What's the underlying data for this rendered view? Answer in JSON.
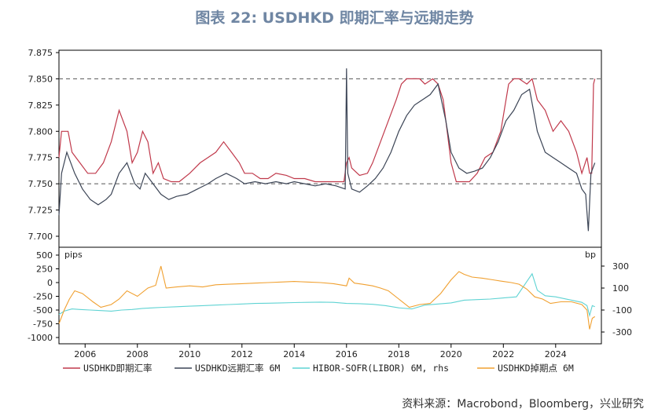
{
  "page": {
    "title": "图表 22: USDHKD 即期汇率与远期走势",
    "source": "资料来源：Macrobond，Bloomberg，兴业研究"
  },
  "chart_data": [
    {
      "type": "line",
      "panel": "top",
      "x_range": [
        2005.0,
        2025.75
      ],
      "ylim": [
        7.7,
        7.875
      ],
      "yticks": [
        "7.875",
        "7.850",
        "7.825",
        "7.800",
        "7.775",
        "7.750",
        "7.725",
        "7.700"
      ],
      "reference_lines": [
        7.85,
        7.75
      ],
      "grid": false,
      "series": [
        {
          "name": "USDHKD即期汇率",
          "color": "#c0394b",
          "x": [
            2005.0,
            2005.1,
            2005.35,
            2005.5,
            2005.8,
            2006.1,
            2006.4,
            2006.7,
            2007.0,
            2007.3,
            2007.6,
            2007.8,
            2008.0,
            2008.2,
            2008.4,
            2008.6,
            2008.8,
            2009.0,
            2009.3,
            2009.6,
            2010.0,
            2010.4,
            2010.7,
            2011.0,
            2011.3,
            2011.6,
            2011.9,
            2012.1,
            2012.4,
            2012.7,
            2013.0,
            2013.3,
            2013.7,
            2014.0,
            2014.4,
            2014.8,
            2015.2,
            2015.6,
            2015.9,
            2016.0,
            2016.1,
            2016.2,
            2016.5,
            2016.8,
            2017.0,
            2017.3,
            2017.6,
            2017.9,
            2018.1,
            2018.3,
            2018.5,
            2018.8,
            2019.0,
            2019.3,
            2019.5,
            2019.7,
            2019.9,
            2020.0,
            2020.2,
            2020.4,
            2020.7,
            2021.0,
            2021.3,
            2021.6,
            2021.9,
            2022.2,
            2022.4,
            2022.6,
            2022.9,
            2023.1,
            2023.3,
            2023.6,
            2023.9,
            2024.2,
            2024.5,
            2024.8,
            2025.0,
            2025.2,
            2025.3,
            2025.38,
            2025.45,
            2025.5
          ],
          "values": [
            7.775,
            7.8,
            7.8,
            7.78,
            7.77,
            7.76,
            7.76,
            7.77,
            7.79,
            7.82,
            7.8,
            7.77,
            7.78,
            7.8,
            7.79,
            7.76,
            7.77,
            7.755,
            7.752,
            7.752,
            7.76,
            7.77,
            7.775,
            7.78,
            7.79,
            7.78,
            7.77,
            7.76,
            7.76,
            7.755,
            7.755,
            7.76,
            7.758,
            7.755,
            7.755,
            7.752,
            7.752,
            7.752,
            7.752,
            7.77,
            7.775,
            7.765,
            7.758,
            7.76,
            7.77,
            7.79,
            7.81,
            7.83,
            7.845,
            7.85,
            7.85,
            7.85,
            7.845,
            7.85,
            7.845,
            7.83,
            7.79,
            7.77,
            7.752,
            7.752,
            7.752,
            7.76,
            7.775,
            7.78,
            7.8,
            7.845,
            7.85,
            7.85,
            7.845,
            7.85,
            7.83,
            7.82,
            7.8,
            7.81,
            7.8,
            7.78,
            7.76,
            7.775,
            7.76,
            7.76,
            7.845,
            7.85
          ]
        },
        {
          "name": "USDHKD远期汇率 6M",
          "color": "#3c4556",
          "x": [
            2005.0,
            2005.1,
            2005.3,
            2005.6,
            2005.9,
            2006.2,
            2006.5,
            2006.8,
            2007.0,
            2007.3,
            2007.6,
            2007.9,
            2008.1,
            2008.3,
            2008.6,
            2008.9,
            2009.2,
            2009.5,
            2009.9,
            2010.3,
            2010.7,
            2011.0,
            2011.4,
            2011.8,
            2012.1,
            2012.5,
            2012.9,
            2013.3,
            2013.7,
            2014.0,
            2014.4,
            2014.8,
            2015.2,
            2015.6,
            2015.95,
            2016.0,
            2016.05,
            2016.2,
            2016.5,
            2016.8,
            2017.1,
            2017.4,
            2017.7,
            2018.0,
            2018.3,
            2018.6,
            2018.9,
            2019.2,
            2019.5,
            2019.8,
            2020.0,
            2020.3,
            2020.6,
            2020.9,
            2021.2,
            2021.5,
            2021.8,
            2022.1,
            2022.4,
            2022.7,
            2023.0,
            2023.3,
            2023.6,
            2023.9,
            2024.2,
            2024.5,
            2024.8,
            2025.0,
            2025.15,
            2025.25,
            2025.35,
            2025.5
          ],
          "values": [
            7.72,
            7.76,
            7.78,
            7.76,
            7.745,
            7.735,
            7.73,
            7.735,
            7.74,
            7.76,
            7.77,
            7.75,
            7.745,
            7.76,
            7.75,
            7.74,
            7.735,
            7.738,
            7.74,
            7.745,
            7.75,
            7.755,
            7.76,
            7.755,
            7.75,
            7.752,
            7.75,
            7.752,
            7.75,
            7.752,
            7.75,
            7.748,
            7.75,
            7.748,
            7.745,
            7.86,
            7.76,
            7.745,
            7.742,
            7.748,
            7.755,
            7.765,
            7.78,
            7.8,
            7.815,
            7.825,
            7.83,
            7.835,
            7.845,
            7.81,
            7.78,
            7.765,
            7.76,
            7.762,
            7.765,
            7.775,
            7.79,
            7.81,
            7.82,
            7.835,
            7.84,
            7.8,
            7.78,
            7.775,
            7.77,
            7.765,
            7.76,
            7.745,
            7.74,
            7.705,
            7.76,
            7.77
          ]
        }
      ]
    },
    {
      "type": "line",
      "panel": "bottom",
      "x_range": [
        2005.0,
        2025.75
      ],
      "ylim": [
        -1000,
        500
      ],
      "yticks": [
        "500",
        "250",
        "0",
        "-250",
        "-500",
        "-750",
        "-1000"
      ],
      "y2lim": [
        -350,
        400
      ],
      "y2ticks": [
        "300",
        "100",
        "-100",
        "-300"
      ],
      "ylabel": "pips",
      "y2label": "bp",
      "xticks": [
        "2006",
        "2008",
        "2010",
        "2012",
        "2014",
        "2016",
        "2018",
        "2020",
        "2022",
        "2024"
      ],
      "xtick_values": [
        2006,
        2008,
        2010,
        2012,
        2014,
        2016,
        2018,
        2020,
        2022,
        2024
      ],
      "series": [
        {
          "name": "HIBOR-SOFR(LIBOR) 6M, rhs",
          "color": "#5fd3d3",
          "axis": "right",
          "x": [
            2005.0,
            2005.2,
            2005.5,
            2005.8,
            2006.2,
            2006.6,
            2007.0,
            2007.4,
            2007.8,
            2008.2,
            2008.6,
            2009.0,
            2009.5,
            2010.0,
            2010.5,
            2011.0,
            2011.5,
            2012.0,
            2012.5,
            2013.0,
            2013.5,
            2014.0,
            2014.5,
            2015.0,
            2015.5,
            2016.0,
            2016.5,
            2017.0,
            2017.5,
            2018.0,
            2018.5,
            2019.0,
            2019.5,
            2020.0,
            2020.5,
            2021.0,
            2021.5,
            2022.0,
            2022.5,
            2022.9,
            2023.1,
            2023.3,
            2023.6,
            2024.0,
            2024.5,
            2025.0,
            2025.2,
            2025.3,
            2025.4,
            2025.5
          ],
          "values": [
            -140,
            -110,
            -90,
            -95,
            -100,
            -105,
            -110,
            -100,
            -95,
            -85,
            -80,
            -75,
            -70,
            -65,
            -60,
            -55,
            -50,
            -45,
            -40,
            -38,
            -35,
            -32,
            -30,
            -28,
            -30,
            -40,
            -42,
            -48,
            -60,
            -80,
            -90,
            -55,
            -45,
            -35,
            -10,
            -5,
            0,
            10,
            20,
            160,
            230,
            80,
            30,
            20,
            -5,
            -30,
            -60,
            -150,
            -60,
            -70
          ]
        },
        {
          "name": "USDHKD掉期点 6M",
          "color": "#f0a030",
          "axis": "left",
          "x": [
            2005.0,
            2005.2,
            2005.4,
            2005.6,
            2005.9,
            2006.3,
            2006.6,
            2007.0,
            2007.3,
            2007.6,
            2008.0,
            2008.4,
            2008.7,
            2008.9,
            2009.1,
            2009.5,
            2010.0,
            2010.5,
            2011.0,
            2011.5,
            2012.0,
            2012.5,
            2013.0,
            2013.5,
            2014.0,
            2014.5,
            2015.0,
            2015.5,
            2016.0,
            2016.1,
            2016.3,
            2016.6,
            2017.0,
            2017.3,
            2017.6,
            2018.0,
            2018.4,
            2018.8,
            2019.2,
            2019.6,
            2020.0,
            2020.3,
            2020.5,
            2020.8,
            2021.2,
            2021.6,
            2022.0,
            2022.3,
            2022.6,
            2022.9,
            2023.2,
            2023.5,
            2023.8,
            2024.2,
            2024.6,
            2025.0,
            2025.2,
            2025.3,
            2025.4,
            2025.5
          ],
          "values": [
            -750,
            -500,
            -300,
            -150,
            -200,
            -350,
            -450,
            -400,
            -300,
            -150,
            -250,
            -100,
            -50,
            300,
            -100,
            -80,
            -60,
            -80,
            -40,
            -30,
            -20,
            -10,
            0,
            10,
            20,
            10,
            0,
            -20,
            -60,
            80,
            -10,
            -30,
            -60,
            -100,
            -150,
            -300,
            -450,
            -400,
            -380,
            -200,
            50,
            200,
            150,
            100,
            80,
            50,
            20,
            0,
            -30,
            -120,
            -260,
            -300,
            -380,
            -350,
            -350,
            -400,
            -500,
            -850,
            -650,
            -620
          ]
        }
      ]
    }
  ],
  "legend": [
    {
      "label": "USDHKD即期汇率",
      "color": "#c0394b"
    },
    {
      "label": "USDHKD远期汇率 6M",
      "color": "#3c4556"
    },
    {
      "label": "HIBOR-SOFR(LIBOR) 6M, rhs",
      "color": "#5fd3d3"
    },
    {
      "label": "USDHKD掉期点 6M",
      "color": "#f0a030"
    }
  ]
}
